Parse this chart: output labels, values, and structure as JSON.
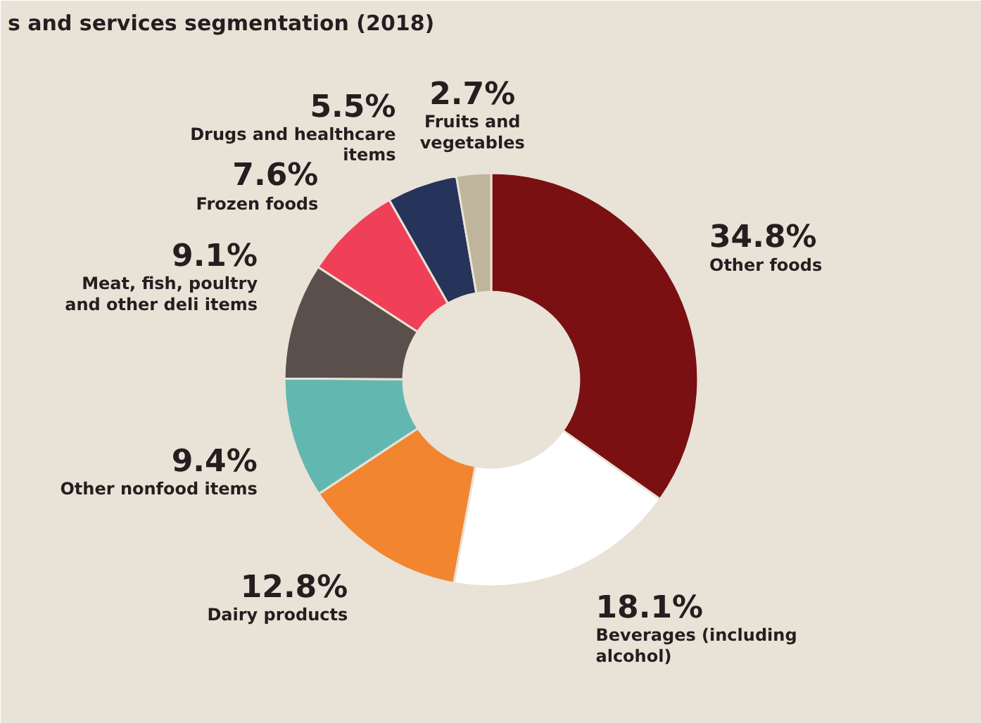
{
  "chart_data": {
    "type": "donut",
    "title": "s and services segmentation (2018)",
    "categories": [
      "Other foods",
      "Beverages (including alcohol)",
      "Dairy products",
      "Other nonfood items",
      "Meat, fish, poultry and other deli items",
      "Frozen foods",
      "Drugs and healthcare items",
      "Fruits and vegetables"
    ],
    "values": [
      34.8,
      18.1,
      12.8,
      9.4,
      9.1,
      7.6,
      5.5,
      2.7
    ],
    "value_labels": [
      "34.8%",
      "18.1%",
      "12.8%",
      "9.4%",
      "9.1%",
      "7.6%",
      "5.5%",
      "2.7%"
    ],
    "colors": [
      "#7a1012",
      "#ffffff",
      "#f28530",
      "#62b8b0",
      "#5a4f4b",
      "#ef4057",
      "#26335a",
      "#bfb59c"
    ]
  }
}
